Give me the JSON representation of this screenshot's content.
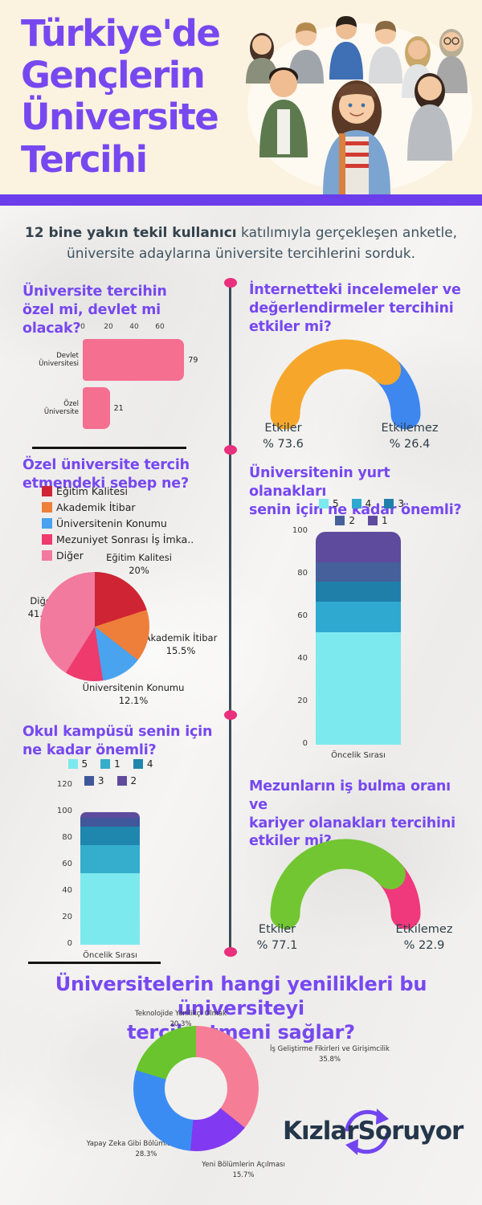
{
  "header": {
    "title": "Türkiye'de Gençlerin Üniversite Tercihi",
    "title_lines": "Türkiye'de\nGençlerin\nÜniversite\nTercihi"
  },
  "intro": {
    "bold": "12 bine yakın tekil kullanıcı",
    "rest": " katılımıyla gerçekleşen anketle,",
    "line2": "üniversite adaylarına üniversite tercihlerini sorduk."
  },
  "sections": {
    "left1": "Üniversite tercihin\nözel mi, devlet mi olacak?",
    "right1": "İnternetteki incelemeler ve\ndeğerlendirmeler tercihini\netkiler mi?",
    "left2": "Özel üniversite tercih\netmendeki sebep ne?",
    "right2": "Üniversitenin yurt olanakları\nsenin için ne kadar önemli?",
    "left3": "Okul kampüsü senin için\nne kadar önemli?",
    "right3": "Mezunların iş bulma oranı ve\nkariyer olanakları tercihini\netkiler mi?",
    "bottom": "Üniversitelerin hangi yenilikleri bu  üniversiteyi\ntercih etmeni sağlar?"
  },
  "footer": {
    "logo": "KızlarSoruyor"
  },
  "colors": {
    "accent_purple": "#7748f0",
    "band_purple": "#6b3deb",
    "dot_pink": "#e8307c",
    "timeline": "#3b4c58",
    "bar_pink": "#f56f91"
  },
  "chart_data": [
    {
      "id": "devlet-ozel",
      "type": "bar",
      "orientation": "horizontal",
      "title": "Üniversite tercihin özel mi, devlet mi olacak?",
      "categories": [
        "Devlet Üniversitesi",
        "Özel Üniversite"
      ],
      "values": [
        79,
        21
      ],
      "value_labels": [
        "79",
        "21"
      ],
      "xticks": [
        0,
        20,
        40,
        60
      ],
      "xlim": [
        0,
        85
      ],
      "bar_color": "#f56f91"
    },
    {
      "id": "internet-gauge",
      "type": "gauge",
      "title": "İnternetteki incelemeler ve değerlendirmeler tercihini etkiler mi?",
      "segments": [
        {
          "label": "Etkiler",
          "value": 73.6,
          "value_label": "% 73.6",
          "color": "#f6a72b"
        },
        {
          "label": "Etkilemez",
          "value": 26.4,
          "value_label": "% 26.4",
          "color": "#3d87ef"
        }
      ]
    },
    {
      "id": "ozel-sebep-pie",
      "type": "pie",
      "title": "Özel üniversite tercih etmendeki sebep ne?",
      "slices": [
        {
          "label": "Eğitim Kalitesi",
          "value": 20,
          "pct_label": "20%",
          "color": "#ce2433"
        },
        {
          "label": "Akademik İtibar",
          "value": 15.5,
          "pct_label": "15.5%",
          "color": "#ee7f3b"
        },
        {
          "label": "Üniversitenin Konumu",
          "value": 12.1,
          "pct_label": "12.1%",
          "color": "#49a3ee"
        },
        {
          "label": "Mezuniyet Sonrası İş İmka..",
          "value": 11.3,
          "pct_label": "",
          "color": "#ee3a6d"
        },
        {
          "label": "Diğer",
          "value": 41.1,
          "pct_label": "41.1%",
          "color": "#f27a9e"
        }
      ]
    },
    {
      "id": "yurt-stacked",
      "type": "bar",
      "subtype": "stacked",
      "title": "Üniversitenin yurt olanakları senin için ne kadar önemli?",
      "xlabel": "Öncelik Sırası",
      "ylim": [
        0,
        100
      ],
      "yticks": [
        0,
        20,
        40,
        60,
        80,
        100
      ],
      "legend_rows": [
        [
          "5",
          "4",
          "3"
        ],
        [
          "2",
          "1"
        ]
      ],
      "series": [
        {
          "name": "5",
          "value": 53,
          "color": "#7ce9ef"
        },
        {
          "name": "4",
          "value": 14,
          "color": "#2fa9cf"
        },
        {
          "name": "3",
          "value": 9.5,
          "color": "#1f7fa9"
        },
        {
          "name": "2",
          "value": 9,
          "color": "#46609c"
        },
        {
          "name": "1",
          "value": 14.5,
          "color": "#5e4b9d"
        }
      ]
    },
    {
      "id": "kampus-stacked",
      "type": "bar",
      "subtype": "stacked",
      "title": "Okul kampüsü senin için ne kadar önemli?",
      "xlabel": "Öncelik Sırası",
      "ylim": [
        0,
        120
      ],
      "yticks": [
        0,
        20,
        40,
        60,
        80,
        100,
        120
      ],
      "legend_rows": [
        [
          "5",
          "1",
          "4"
        ],
        [
          "3",
          "2"
        ]
      ],
      "series": [
        {
          "name": "5",
          "value": 54,
          "color": "#7ce9ef"
        },
        {
          "name": "1",
          "value": 21,
          "color": "#35adcd"
        },
        {
          "name": "4",
          "value": 14,
          "color": "#1f86ae"
        },
        {
          "name": "3",
          "value": 7,
          "color": "#40589a"
        },
        {
          "name": "2",
          "value": 4,
          "color": "#5e4b9d"
        }
      ]
    },
    {
      "id": "mezun-gauge",
      "type": "gauge",
      "title": "Mezunların iş bulma oranı ve kariyer olanakları tercihini etkiler mi?",
      "segments": [
        {
          "label": "Etkiler",
          "value": 77.1,
          "value_label": "% 77.1",
          "color": "#72c632"
        },
        {
          "label": "Etkilemez",
          "value": 22.9,
          "value_label": "% 22.9",
          "color": "#f0387c"
        }
      ]
    },
    {
      "id": "yenilik-donut",
      "type": "donut",
      "title": "Üniversitelerin hangi yenilikleri bu üniversiteyi tercih etmeni sağlar?",
      "slices": [
        {
          "label": "İş Geliştirme Fikirleri ve Girişimcilik",
          "value": 35.8,
          "pct_label": "35.8%",
          "color": "#f67d96"
        },
        {
          "label": "Yeni Bölümlerin Açılması",
          "value": 15.7,
          "pct_label": "15.7%",
          "color": "#8139f2"
        },
        {
          "label": "Yapay Zeka Gibi Bölümlerin Olması",
          "value": 28.3,
          "pct_label": "28.3%",
          "color": "#3b8cf2"
        },
        {
          "label": "Teknolojide Yenilikçi Olmak",
          "value": 20.3,
          "pct_label": "20.3%",
          "color": "#69c42d"
        }
      ]
    }
  ]
}
